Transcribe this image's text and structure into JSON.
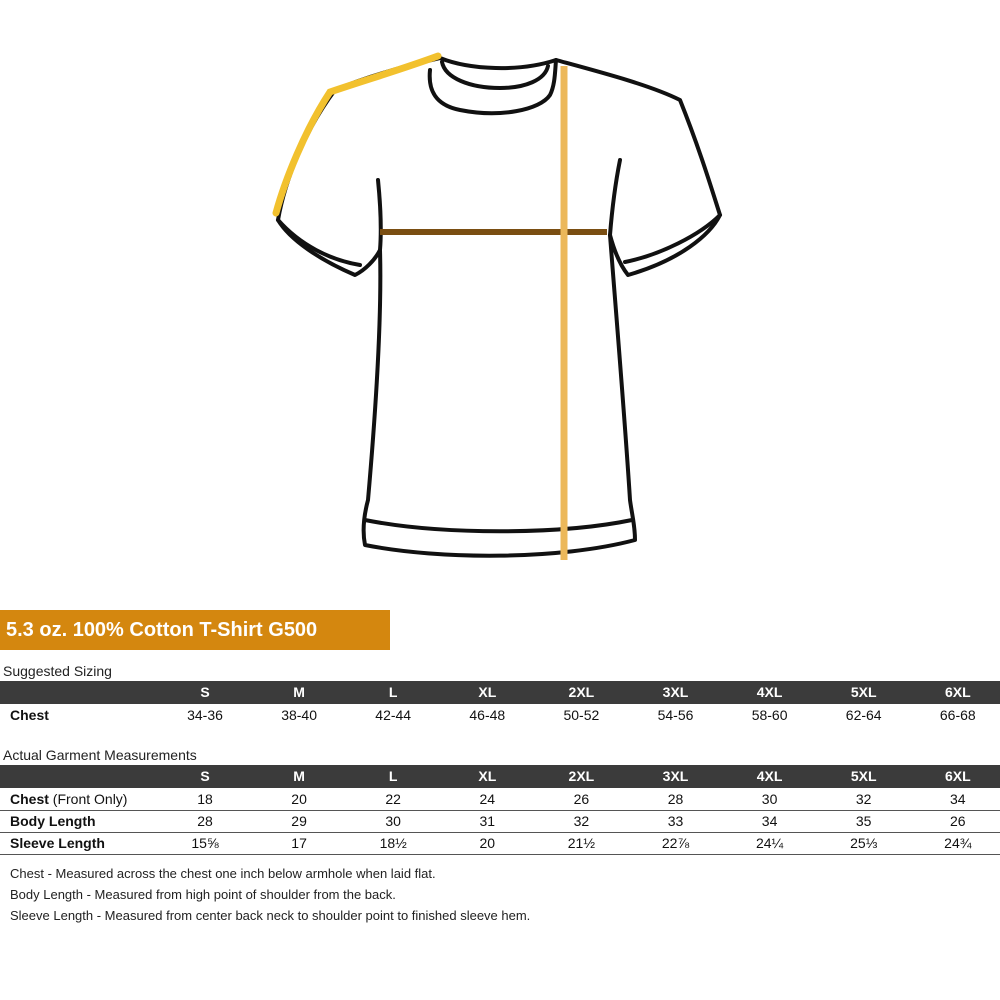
{
  "title": "5.3 oz. 100% Cotton T-Shirt G500",
  "suggested_sizing": {
    "heading": "Suggested Sizing",
    "sizes": [
      "S",
      "M",
      "L",
      "XL",
      "2XL",
      "3XL",
      "4XL",
      "5XL",
      "6XL"
    ],
    "rows": [
      {
        "label": "Chest",
        "values": [
          "34-36",
          "38-40",
          "42-44",
          "46-48",
          "50-52",
          "54-56",
          "58-60",
          "62-64",
          "66-68"
        ]
      }
    ]
  },
  "actual_measurements": {
    "heading": "Actual Garment Measurements",
    "sizes": [
      "S",
      "M",
      "L",
      "XL",
      "2XL",
      "3XL",
      "4XL",
      "5XL",
      "6XL"
    ],
    "rows": [
      {
        "label": "Chest",
        "label_note": "(Front Only)",
        "values": [
          "18",
          "20",
          "22",
          "24",
          "26",
          "28",
          "30",
          "32",
          "34"
        ]
      },
      {
        "label": "Body Length",
        "values": [
          "28",
          "29",
          "30",
          "31",
          "32",
          "33",
          "34",
          "35",
          "26"
        ]
      },
      {
        "label": "Sleeve Length",
        "values": [
          "15⅝",
          "17",
          "18½",
          "20",
          "21½",
          "22⅞",
          "24¼",
          "25⅓",
          "24¾"
        ]
      }
    ]
  },
  "notes": [
    "Chest - Measured across the chest one inch below armhole when laid flat.",
    "Body Length - Measured from high point of shoulder from the back.",
    "Sleeve Length - Measured from center back neck to shoulder point to finished sleeve hem."
  ]
}
